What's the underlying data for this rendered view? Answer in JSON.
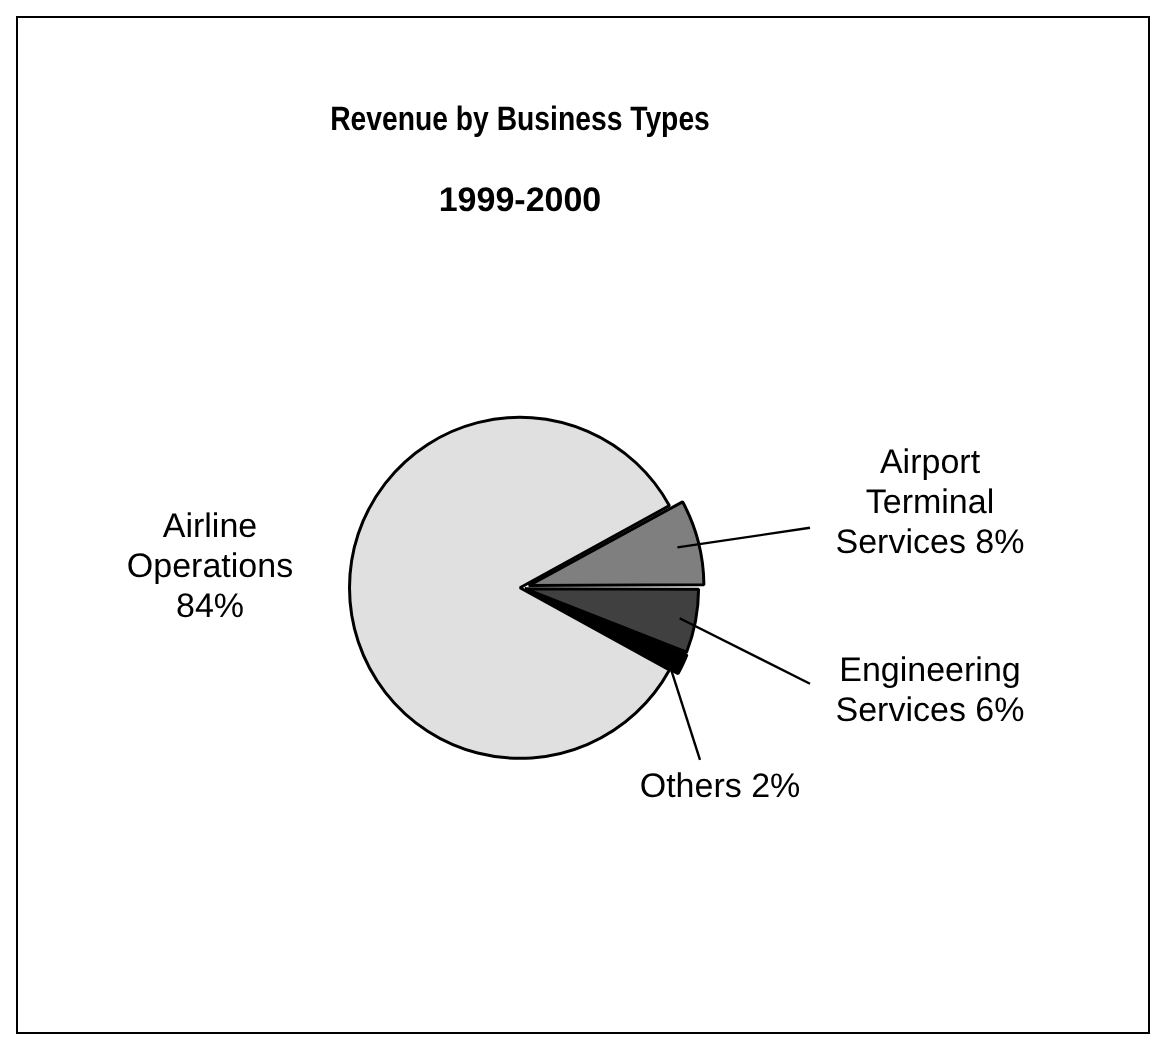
{
  "chart_data": {
    "type": "pie",
    "title": "Revenue by Business Types",
    "subtitle": "1999-2000",
    "categories": [
      "Airport Terminal Services",
      "Engineering Services",
      "Others",
      "Airline Operations"
    ],
    "values": [
      8,
      6,
      2,
      84
    ],
    "colors": [
      "#7f7f7f",
      "#404040",
      "#000000",
      "#e0e0e0"
    ],
    "value_labels": [
      "8%",
      "6%",
      "2%",
      "84%"
    ],
    "legend": false
  }
}
